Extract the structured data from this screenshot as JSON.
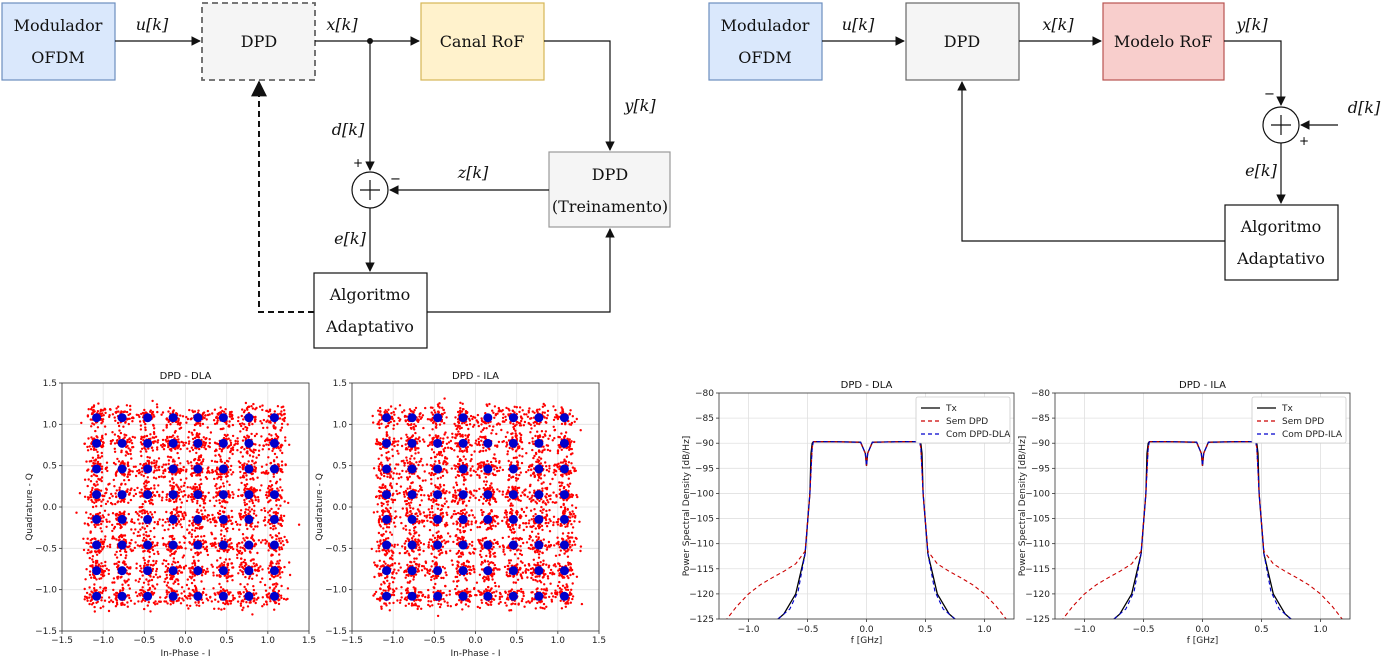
{
  "diagram_left": {
    "boxes": {
      "modulator_l1": "Modulador",
      "modulator_l2": "OFDM",
      "dpd": "DPD",
      "canal": "Canal RoF",
      "dpd_train_l1": "DPD",
      "dpd_train_l2": "(Treinamento)",
      "algo_l1": "Algoritmo",
      "algo_l2": "Adaptativo"
    },
    "signals": {
      "u": "u[k]",
      "x": "x[k]",
      "y": "y[k]",
      "z": "z[k]",
      "d": "d[k]",
      "e": "e[k]"
    },
    "signs": {
      "plus": "+",
      "minus": "−"
    }
  },
  "diagram_right": {
    "boxes": {
      "modulator_l1": "Modulador",
      "modulator_l2": "OFDM",
      "dpd": "DPD",
      "modelo": "Modelo RoF",
      "algo_l1": "Algoritmo",
      "algo_l2": "Adaptativo"
    },
    "signals": {
      "u": "u[k]",
      "x": "x[k]",
      "y": "y[k]",
      "d": "d[k]",
      "e": "e[k]"
    },
    "signs": {
      "plus": "+",
      "minus": "−"
    }
  },
  "colors": {
    "modulator": "#dae8fc",
    "modulator_border": "#6c8ebf",
    "canal": "#fff2cc",
    "canal_border": "#d6b656",
    "modelo": "#f8cecc",
    "modelo_border": "#b85450",
    "gray_box": "#f5f5f5",
    "scatter_rx": "#ff0000",
    "scatter_ideal": "#0000cc",
    "tx": "#000000",
    "sem": "#cc0000",
    "com": "#0000cc"
  },
  "chart_data": [
    {
      "type": "scatter",
      "title": "DPD - DLA",
      "xlabel": "In-Phase - I",
      "ylabel": "Quadrature - Q",
      "xlim": [
        -1.5,
        1.5
      ],
      "ylim": [
        -1.5,
        1.5
      ],
      "xticks": [
        "−1.5",
        "−1.0",
        "−0.5",
        "0.0",
        "0.5",
        "1.0",
        "1.5"
      ],
      "yticks": [
        "−1.5",
        "−1.0",
        "−0.5",
        "0.0",
        "0.5",
        "1.0",
        "1.5"
      ],
      "constellation_levels": [
        -1.08,
        -0.77,
        -0.46,
        -0.15,
        0.15,
        0.46,
        0.77,
        1.08
      ],
      "spread": 0.07,
      "grid": true
    },
    {
      "type": "scatter",
      "title": "DPD - ILA",
      "xlabel": "In-Phase - I",
      "ylabel": "Quadrature - Q",
      "xlim": [
        -1.5,
        1.5
      ],
      "ylim": [
        -1.5,
        1.5
      ],
      "xticks": [
        "−1.5",
        "−1.0",
        "−0.5",
        "0.0",
        "0.5",
        "1.0",
        "1.5"
      ],
      "yticks": [
        "−1.5",
        "−1.0",
        "−0.5",
        "0.0",
        "0.5",
        "1.0",
        "1.5"
      ],
      "constellation_levels": [
        -1.08,
        -0.77,
        -0.46,
        -0.15,
        0.15,
        0.46,
        0.77,
        1.08
      ],
      "spread": 0.07,
      "grid": true
    },
    {
      "type": "line",
      "title": "DPD - DLA",
      "xlabel": "f [GHz]",
      "ylabel": "Power Spectral Density [dB/Hz]",
      "xlim": [
        -1.25,
        1.25
      ],
      "ylim": [
        -125,
        -80
      ],
      "xticks": [
        "−1.0",
        "−0.5",
        "0.0",
        "0.5",
        "1.0"
      ],
      "yticks": [
        "−80",
        "−85",
        "−90",
        "−95",
        "−100",
        "−105",
        "−110",
        "−115",
        "−120",
        "−125"
      ],
      "legend_position": "top-right",
      "grid": true,
      "series": [
        {
          "name": "Tx",
          "style": "solid",
          "x": [
            -0.8,
            -0.7,
            -0.6,
            -0.52,
            -0.48,
            -0.47,
            -0.46,
            -0.45,
            -0.3,
            -0.05,
            -0.01,
            0.0,
            0.01,
            0.05,
            0.3,
            0.45,
            0.46,
            0.47,
            0.48,
            0.52,
            0.6,
            0.7,
            0.8
          ],
          "y": [
            -126,
            -124,
            -120,
            -112,
            -100,
            -92,
            -90,
            -89.7,
            -89.7,
            -89.8,
            -92,
            -94.5,
            -92,
            -89.8,
            -89.7,
            -89.7,
            -90,
            -92,
            -100,
            -112,
            -120,
            -124,
            -126
          ]
        },
        {
          "name": "Sem DPD",
          "style": "dashed",
          "x": [
            -1.2,
            -1.1,
            -1.0,
            -0.9,
            -0.8,
            -0.7,
            -0.6,
            -0.52,
            -0.48,
            -0.46,
            -0.45,
            -0.3,
            -0.05,
            -0.01,
            0.0,
            0.01,
            0.05,
            0.3,
            0.45,
            0.46,
            0.48,
            0.52,
            0.6,
            0.7,
            0.8,
            0.9,
            1.0,
            1.1,
            1.2
          ],
          "y": [
            -125.5,
            -122.5,
            -120,
            -118.2,
            -116.8,
            -115.5,
            -114,
            -111.5,
            -100,
            -91,
            -89.7,
            -89.7,
            -89.8,
            -92,
            -94.5,
            -92,
            -89.8,
            -89.7,
            -89.7,
            -91,
            -100,
            -111.5,
            -114,
            -115.5,
            -116.8,
            -118.2,
            -120,
            -122.5,
            -125.5
          ]
        },
        {
          "name": "Com DPD-DLA",
          "style": "dashed",
          "x": [
            -0.75,
            -0.65,
            -0.58,
            -0.52,
            -0.48,
            -0.46,
            -0.45,
            -0.3,
            -0.05,
            -0.01,
            0.0,
            0.01,
            0.05,
            0.3,
            0.45,
            0.46,
            0.48,
            0.52,
            0.58,
            0.65,
            0.75
          ],
          "y": [
            -125,
            -123,
            -119.5,
            -112,
            -100,
            -91,
            -89.7,
            -89.7,
            -89.8,
            -92,
            -94.5,
            -92,
            -89.8,
            -89.7,
            -89.7,
            -91,
            -100,
            -112,
            -119.5,
            -123,
            -125
          ]
        }
      ]
    },
    {
      "type": "line",
      "title": "DPD - ILA",
      "xlabel": "f [GHz]",
      "ylabel": "Power Spectral Density [dB/Hz]",
      "xlim": [
        -1.25,
        1.25
      ],
      "ylim": [
        -125,
        -80
      ],
      "xticks": [
        "−1.0",
        "−0.5",
        "0.0",
        "0.5",
        "1.0"
      ],
      "yticks": [
        "−80",
        "−85",
        "−90",
        "−95",
        "−100",
        "−105",
        "−110",
        "−115",
        "−120",
        "−125"
      ],
      "legend_position": "top-right",
      "grid": true,
      "series": [
        {
          "name": "Tx",
          "style": "solid",
          "x": [
            -0.8,
            -0.7,
            -0.6,
            -0.52,
            -0.48,
            -0.47,
            -0.46,
            -0.45,
            -0.3,
            -0.05,
            -0.01,
            0.0,
            0.01,
            0.05,
            0.3,
            0.45,
            0.46,
            0.47,
            0.48,
            0.52,
            0.6,
            0.7,
            0.8
          ],
          "y": [
            -126,
            -124,
            -120,
            -112,
            -100,
            -92,
            -90,
            -89.7,
            -89.7,
            -89.8,
            -92,
            -94.5,
            -92,
            -89.8,
            -89.7,
            -89.7,
            -90,
            -92,
            -100,
            -112,
            -120,
            -124,
            -126
          ]
        },
        {
          "name": "Sem DPD",
          "style": "dashed",
          "x": [
            -1.2,
            -1.1,
            -1.0,
            -0.9,
            -0.8,
            -0.7,
            -0.6,
            -0.52,
            -0.48,
            -0.46,
            -0.45,
            -0.3,
            -0.05,
            -0.01,
            0.0,
            0.01,
            0.05,
            0.3,
            0.45,
            0.46,
            0.48,
            0.52,
            0.6,
            0.7,
            0.8,
            0.9,
            1.0,
            1.1,
            1.2
          ],
          "y": [
            -125.5,
            -122.5,
            -120,
            -118.2,
            -116.8,
            -115.5,
            -114,
            -111.5,
            -100,
            -91,
            -89.7,
            -89.7,
            -89.8,
            -92,
            -94.5,
            -92,
            -89.8,
            -89.7,
            -89.7,
            -91,
            -100,
            -111.5,
            -114,
            -115.5,
            -116.8,
            -118.2,
            -120,
            -122.5,
            -125.5
          ]
        },
        {
          "name": "Com DPD-ILA",
          "style": "dashed",
          "x": [
            -0.75,
            -0.65,
            -0.58,
            -0.52,
            -0.48,
            -0.46,
            -0.45,
            -0.3,
            -0.05,
            -0.01,
            0.0,
            0.01,
            0.05,
            0.3,
            0.45,
            0.46,
            0.48,
            0.52,
            0.58,
            0.65,
            0.75
          ],
          "y": [
            -125,
            -123,
            -119.5,
            -112,
            -100,
            -91,
            -89.7,
            -89.7,
            -89.8,
            -92,
            -94.5,
            -92,
            -89.8,
            -89.7,
            -89.7,
            -91,
            -100,
            -112,
            -119.5,
            -123,
            -125
          ]
        }
      ]
    }
  ]
}
